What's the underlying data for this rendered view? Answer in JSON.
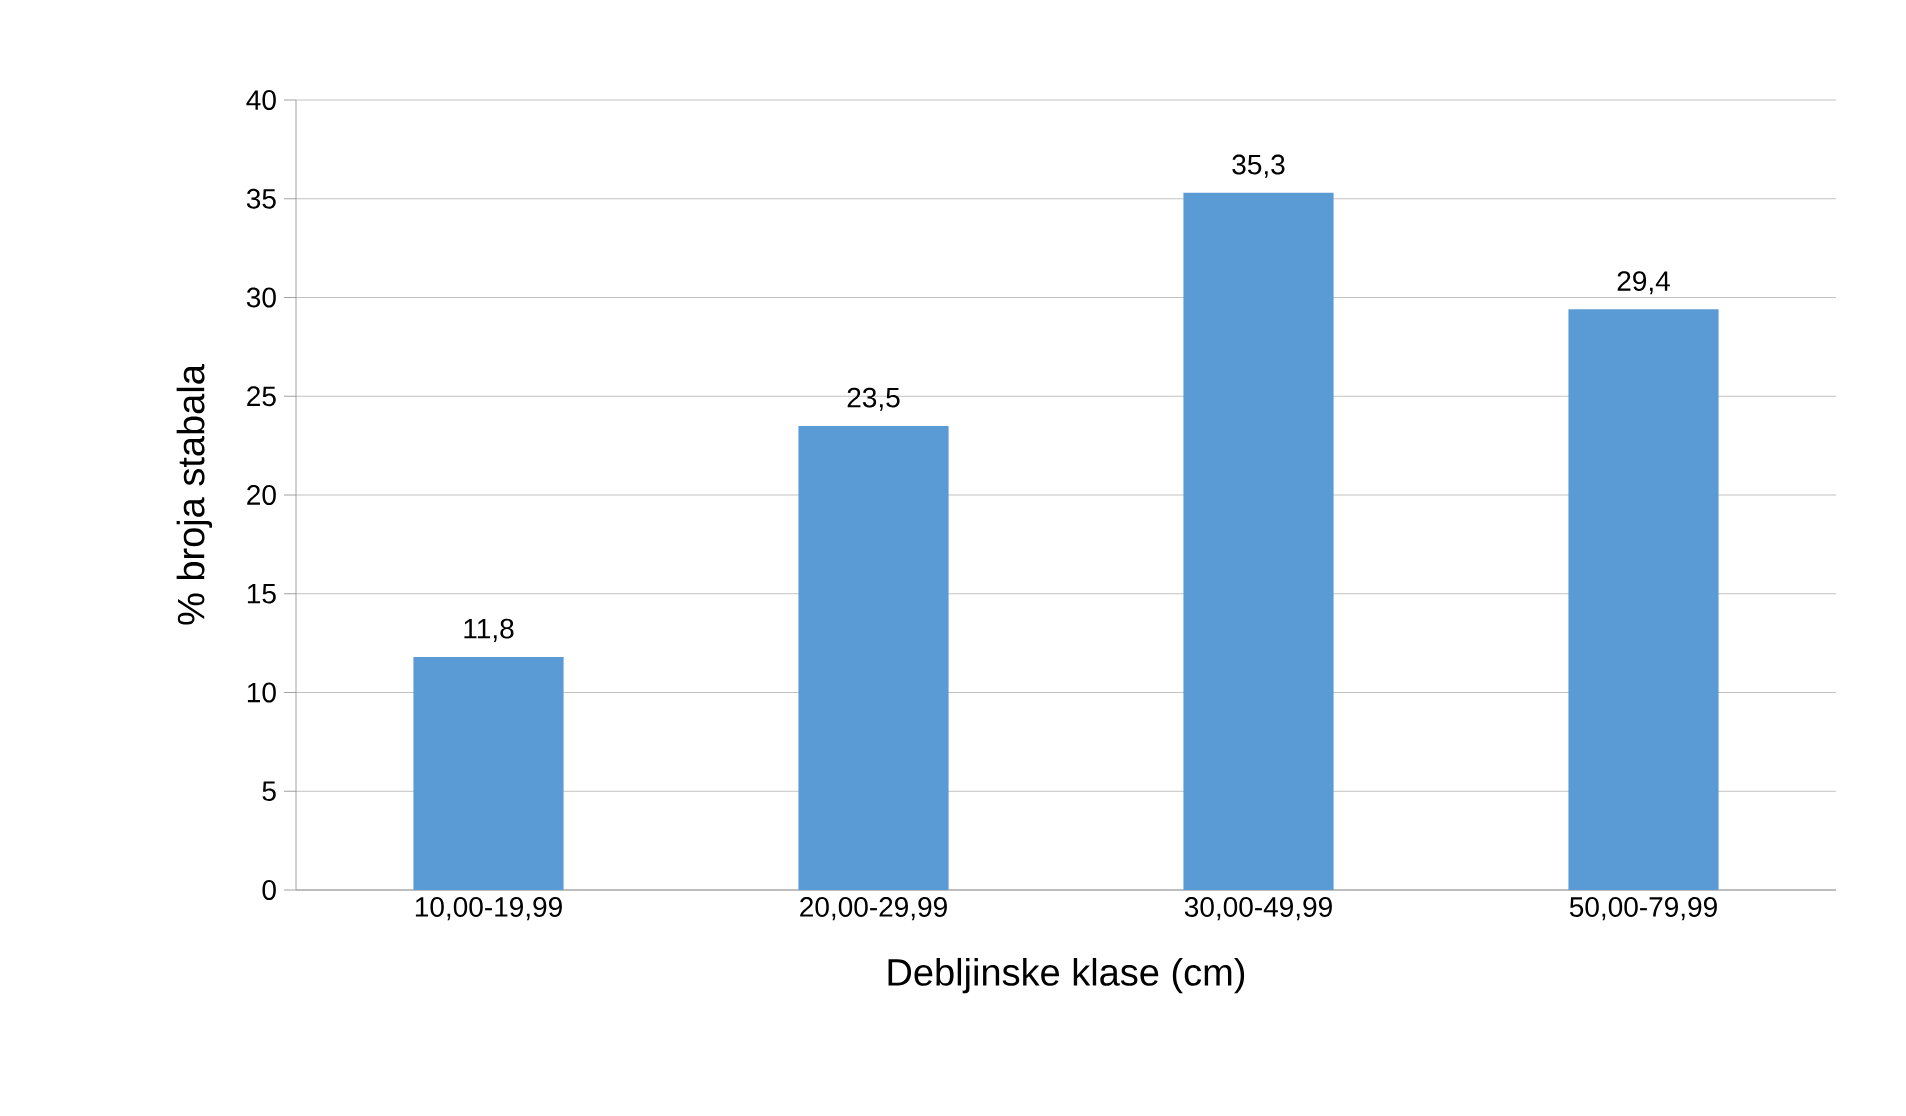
{
  "chart_data": {
    "type": "bar",
    "xlabel": "Debljinske klase (cm)",
    "ylabel": "% broja stabala",
    "categories": [
      "10,00-19,99",
      "20,00-29,99",
      "30,00-49,99",
      "50,00-79,99"
    ],
    "values": [
      11.8,
      23.5,
      35.3,
      29.4
    ],
    "value_labels": [
      "11,8",
      "23,5",
      "35,3",
      "29,4"
    ],
    "color": "#5b9bd5",
    "ylim": [
      0,
      40
    ],
    "yticks": [
      0,
      5,
      10,
      15,
      20,
      25,
      30,
      35,
      40
    ],
    "grid": "y"
  }
}
